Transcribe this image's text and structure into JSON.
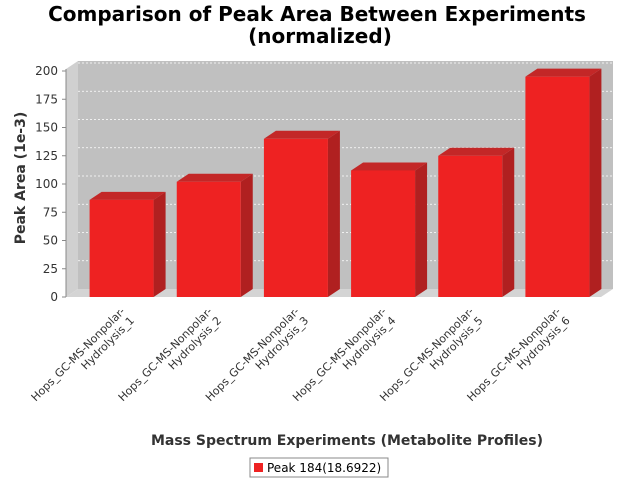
{
  "chart_data": {
    "type": "bar",
    "title_lines": [
      "Comparison of Peak Area Between Experiments",
      "(normalized)"
    ],
    "xlabel": "Mass Spectrum Experiments (Metabolite Profiles)",
    "ylabel": "Peak Area (1e-3)",
    "ylim": [
      0,
      200
    ],
    "yticks": [
      "0",
      "25",
      "50",
      "75",
      "100",
      "125",
      "150",
      "175",
      "200"
    ],
    "categories": [
      [
        "Hops_GC-MS-Nonpolar-",
        "Hydrolysis_1"
      ],
      [
        "Hops_GC-MS-Nonpolar-",
        "Hydrolysis_2"
      ],
      [
        "Hops_GC-MS-Nonpolar-",
        "Hydrolysis_3"
      ],
      [
        "Hops_GC-MS-Nonpolar-",
        "Hydrolysis_4"
      ],
      [
        "Hops_GC-MS-Nonpolar-",
        "Hydrolysis_5"
      ],
      [
        "Hops_GC-MS-Nonpolar-",
        "Hydrolysis_6"
      ]
    ],
    "series": [
      {
        "name": "Peak 184(18.6922)",
        "values": [
          86,
          102,
          140,
          112,
          125,
          195
        ],
        "color": "#ee2222"
      }
    ],
    "grid": true,
    "legend_position": "bottom-center"
  }
}
